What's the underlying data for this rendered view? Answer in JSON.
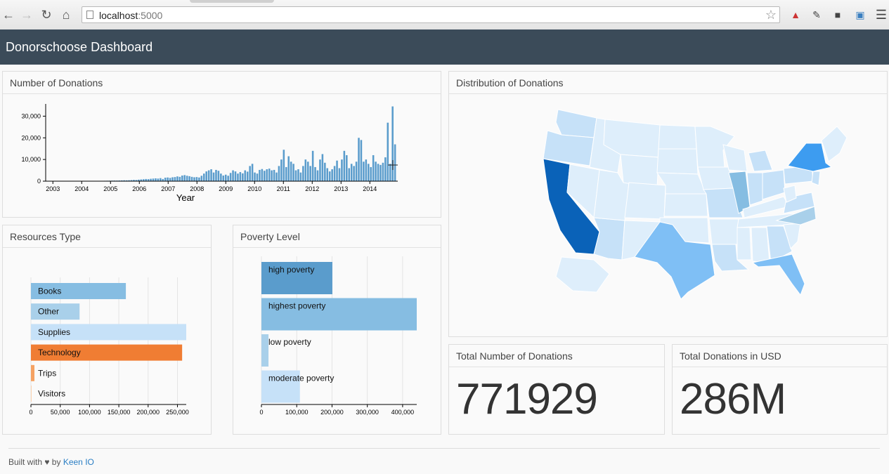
{
  "browser": {
    "url_host": "localhost",
    "url_port": ":5000"
  },
  "header": {
    "title": "Donorschoose Dashboard"
  },
  "panels": {
    "donations": "Number of Donations",
    "distribution": "Distribution of Donations",
    "resources": "Resources Type",
    "poverty": "Poverty Level",
    "total_count": "Total Number of Donations",
    "total_usd": "Total Donations in USD"
  },
  "metrics": {
    "total_count": "771929",
    "total_usd": "286M"
  },
  "footer": {
    "prefix": "Built with ♥ by",
    "link": "Keen IO"
  },
  "colors": {
    "orange": "#f07d33",
    "blue1": "#5a9ccc",
    "blue2": "#86bde2",
    "blue3": "#a9d0ea",
    "blue4": "#c6e1f8"
  },
  "chart_data": [
    {
      "type": "bar",
      "title": "Number of Donations",
      "xlabel": "Year",
      "ylabel": "",
      "ylim": [
        0,
        35000
      ],
      "yticks": [
        "0",
        "10,000",
        "20,000",
        "30,000"
      ],
      "xticks": [
        "2003",
        "2004",
        "2005",
        "2006",
        "2007",
        "2008",
        "2009",
        "2010",
        "2011",
        "2012",
        "2013",
        "2014"
      ],
      "x_start": 2002.75,
      "x_end": 2014.92,
      "values": [
        10,
        15,
        20,
        15,
        10,
        20,
        30,
        25,
        20,
        30,
        40,
        35,
        50,
        60,
        55,
        70,
        60,
        80,
        90,
        100,
        120,
        150,
        160,
        140,
        180,
        200,
        220,
        250,
        280,
        260,
        300,
        350,
        400,
        380,
        420,
        500,
        600,
        550,
        700,
        800,
        900,
        1000,
        950,
        1100,
        1200,
        1300,
        1200,
        1400,
        1000,
        1600,
        1700,
        1500,
        1800,
        1900,
        2200,
        2000,
        2600,
        2800,
        2500,
        2300,
        2000,
        1800,
        1900,
        1700,
        2500,
        3500,
        4500,
        5000,
        5500,
        4000,
        5200,
        4800,
        3500,
        2600,
        3000,
        2500,
        3800,
        5000,
        4500,
        3500,
        4200,
        3600,
        5000,
        4400,
        7000,
        8000,
        4000,
        3500,
        5200,
        5600,
        4800,
        5500,
        5800,
        5000,
        5200,
        4000,
        7000,
        10000,
        14500,
        6500,
        11500,
        9000,
        8000,
        5000,
        5500,
        4000,
        7000,
        10000,
        9000,
        7000,
        14000,
        6500,
        5000,
        10000,
        12500,
        8500,
        6000,
        4500,
        5500,
        7000,
        9500,
        6000,
        10000,
        14000,
        12000,
        6000,
        8000,
        7000,
        9000,
        20000,
        19000,
        9000,
        10000,
        8000,
        6500,
        12000,
        9000,
        8000,
        7500,
        8500,
        11000,
        27000,
        8000,
        34500,
        17000
      ]
    },
    {
      "type": "bar",
      "title": "Resources Type",
      "orientation": "horizontal",
      "categories": [
        "Books",
        "Other",
        "Supplies",
        "Technology",
        "Trips",
        "Visitors"
      ],
      "values": [
        162000,
        83000,
        265000,
        258000,
        6000,
        1000
      ],
      "xlim": [
        0,
        265000
      ],
      "xticks": [
        "0",
        "50,000",
        "100,000",
        "150,000",
        "200,000",
        "250,000"
      ],
      "colors": [
        "#86bde2",
        "#a9d0ea",
        "#c6e1f8",
        "#f07d33",
        "#f5a263",
        "#fad2b0"
      ]
    },
    {
      "type": "bar",
      "title": "Poverty Level",
      "orientation": "horizontal",
      "categories": [
        "high poverty",
        "highest poverty",
        "low poverty",
        "moderate poverty"
      ],
      "values": [
        201000,
        440000,
        20000,
        109000
      ],
      "xlim": [
        0,
        440000
      ],
      "xticks": [
        "0",
        "100,000",
        "200,000",
        "300,000",
        "400,000"
      ],
      "colors": [
        "#5a9ccc",
        "#86bde2",
        "#a9d0ea",
        "#c6e1f8"
      ]
    }
  ]
}
